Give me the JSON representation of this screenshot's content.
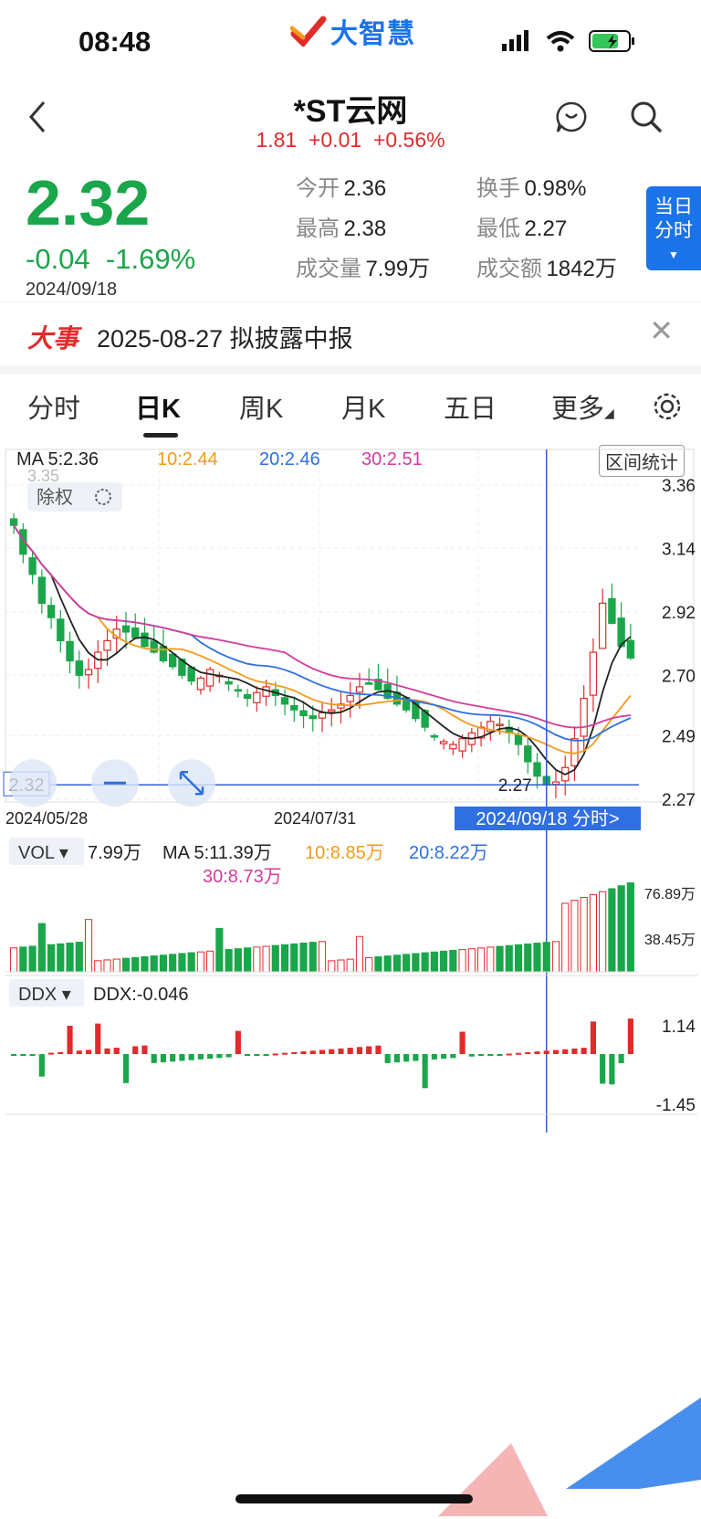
{
  "status": {
    "time": "08:48",
    "brand": "大智慧"
  },
  "header": {
    "title": "*ST云网",
    "sub_price": "1.81",
    "sub_change": "+0.01",
    "sub_pct": "+0.56%"
  },
  "quote": {
    "price": "2.32",
    "change": "-0.04",
    "pct": "-1.69%",
    "date": "2024/09/18",
    "open_label": "今开",
    "open": "2.36",
    "turnover_label": "换手",
    "turnover": "0.98%",
    "high_label": "最高",
    "high": "2.38",
    "low_label": "最低",
    "low": "2.27",
    "vol_label": "成交量",
    "vol": "7.99万",
    "amount_label": "成交额",
    "amount": "1842万",
    "day_btn_l1": "当日",
    "day_btn_l2": "分时"
  },
  "event": {
    "tag": "大事",
    "text": "2025-08-27 拟披露中报"
  },
  "tabs": [
    {
      "label": "分时"
    },
    {
      "label": "日K"
    },
    {
      "label": "周K"
    },
    {
      "label": "月K"
    },
    {
      "label": "五日"
    },
    {
      "label": "更多"
    }
  ],
  "ma_legend": {
    "ma5": "MA 5:2.36",
    "ma10": "10:2.44",
    "ma20": "20:2.46",
    "ma30": "30:2.51",
    "interval_btn": "区间统计",
    "adjust": "除权"
  },
  "colors": {
    "up": "#e02b2b",
    "down": "#1aa64a",
    "ma5": "#222222",
    "ma10": "#f39a1c",
    "ma20": "#2f6fe0",
    "ma30": "#d43c9c",
    "accent": "#1a73e8"
  },
  "chart_data": {
    "type": "candlestick",
    "price_axis": [
      "3.36",
      "3.14",
      "2.92",
      "2.70",
      "2.49",
      "2.27"
    ],
    "ylim": [
      2.27,
      3.36
    ],
    "date_labels": [
      "2024/05/28",
      "2024/07/31"
    ],
    "cursor_price": "2.32",
    "cursor_date": "2024/09/18 分时>",
    "low_mark": "2.27",
    "high_mark": "3.35",
    "closes": [
      3.22,
      3.12,
      3.05,
      2.95,
      2.9,
      2.82,
      2.75,
      2.7,
      2.72,
      2.78,
      2.82,
      2.86,
      2.85,
      2.83,
      2.8,
      2.78,
      2.75,
      2.73,
      2.7,
      2.68,
      2.69,
      2.72,
      2.7,
      2.67,
      2.65,
      2.62,
      2.64,
      2.66,
      2.63,
      2.6,
      2.58,
      2.56,
      2.55,
      2.57,
      2.58,
      2.6,
      2.63,
      2.66,
      2.67,
      2.65,
      2.62,
      2.6,
      2.58,
      2.55,
      2.52,
      2.49,
      2.47,
      2.46,
      2.48,
      2.5,
      2.52,
      2.54,
      2.53,
      2.5,
      2.46,
      2.4,
      2.35,
      2.32,
      2.33,
      2.38,
      2.48,
      2.62,
      2.78,
      2.95,
      2.88,
      2.8,
      2.76
    ],
    "vol_legend": {
      "label": "VOL",
      "vol": "7.99万",
      "ma5": "MA 5:11.39万",
      "ma10": "10:8.85万",
      "ma20": "20:8.22万",
      "ma30": "30:8.73万"
    },
    "vol_axis": [
      "76.89万",
      "38.45万"
    ],
    "ddx_legend": {
      "label": "DDX",
      "value": "DDX:-0.046"
    },
    "ddx_axis": [
      "1.14",
      "-1.45"
    ]
  }
}
